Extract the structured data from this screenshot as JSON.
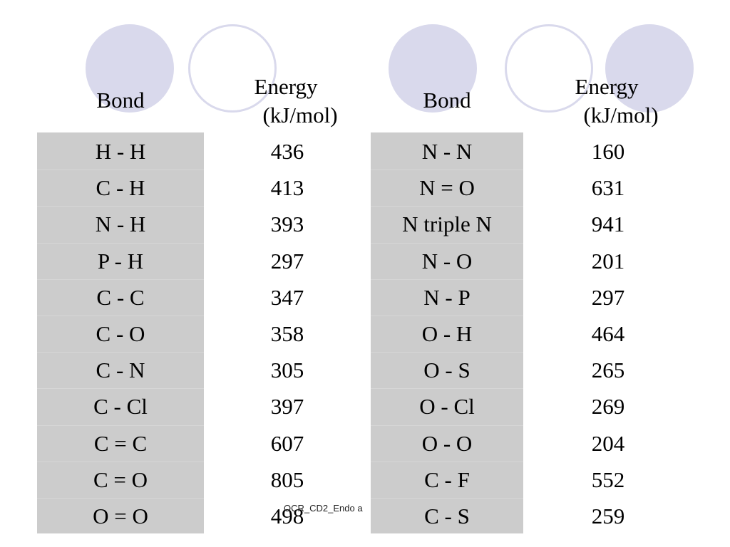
{
  "headers": {
    "left_bond": "Bond",
    "left_energy_line1": "Energy",
    "left_energy_line2": "(kJ/mol)",
    "right_bond": "Bond",
    "right_energy_line1": "Energy",
    "right_energy_line2": "(kJ/mol)"
  },
  "colors": {
    "decor_circle": "#d9d9ec",
    "bond_column_bg": "#cccccc"
  },
  "left_table": [
    {
      "bond": "H - H",
      "energy": "436"
    },
    {
      "bond": "C - H",
      "energy": "413"
    },
    {
      "bond": "N - H",
      "energy": "393"
    },
    {
      "bond": "P - H",
      "energy": "297"
    },
    {
      "bond": "C - C",
      "energy": "347"
    },
    {
      "bond": "C - O",
      "energy": "358"
    },
    {
      "bond": "C - N",
      "energy": "305"
    },
    {
      "bond": "C - Cl",
      "energy": "397"
    },
    {
      "bond": "C = C",
      "energy": "607"
    },
    {
      "bond": "C = O",
      "energy": "805"
    },
    {
      "bond": "O = O",
      "energy": "498"
    }
  ],
  "right_table": [
    {
      "bond": "N - N",
      "energy": "160"
    },
    {
      "bond": "N = O",
      "energy": "631"
    },
    {
      "bond": "N triple N",
      "energy": "941"
    },
    {
      "bond": "N - O",
      "energy": "201"
    },
    {
      "bond": "N - P",
      "energy": "297"
    },
    {
      "bond": "O - H",
      "energy": "464"
    },
    {
      "bond": "O - S",
      "energy": "265"
    },
    {
      "bond": "O - Cl",
      "energy": "269"
    },
    {
      "bond": "O - O",
      "energy": "204"
    },
    {
      "bond": "C - F",
      "energy": "552"
    },
    {
      "bond": "C - S",
      "energy": "259"
    }
  ],
  "footer": "OCR_CD2_Endo a"
}
